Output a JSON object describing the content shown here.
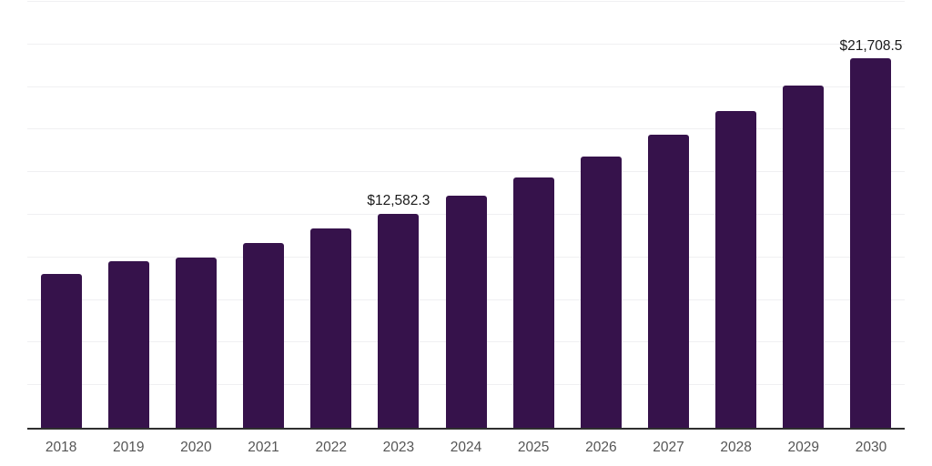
{
  "chart_data": {
    "type": "bar",
    "categories": [
      "2018",
      "2019",
      "2020",
      "2021",
      "2022",
      "2023",
      "2024",
      "2025",
      "2026",
      "2027",
      "2028",
      "2029",
      "2030"
    ],
    "values": [
      9050,
      9780,
      10000,
      10850,
      11700,
      12582.3,
      13601.9,
      14703.9,
      15895.3,
      17183.2,
      18575.5,
      20080.6,
      21708.5
    ],
    "annotations": [
      {
        "category": "2023",
        "text": "$12,582.3"
      },
      {
        "category": "2030",
        "text": "$21,708.5"
      }
    ],
    "title": "",
    "xlabel": "",
    "ylabel": "",
    "ylim": [
      0,
      25000
    ],
    "grid_interval": 2500,
    "grid": "horizontal",
    "legend": "none",
    "colors": {
      "bar": "#36124B",
      "gridline": "#F0F0F2",
      "axis_line": "#2F2F2F",
      "tick_label": "#555555",
      "value_label": "#1A1A1A",
      "background": "#FFFFFF"
    }
  }
}
